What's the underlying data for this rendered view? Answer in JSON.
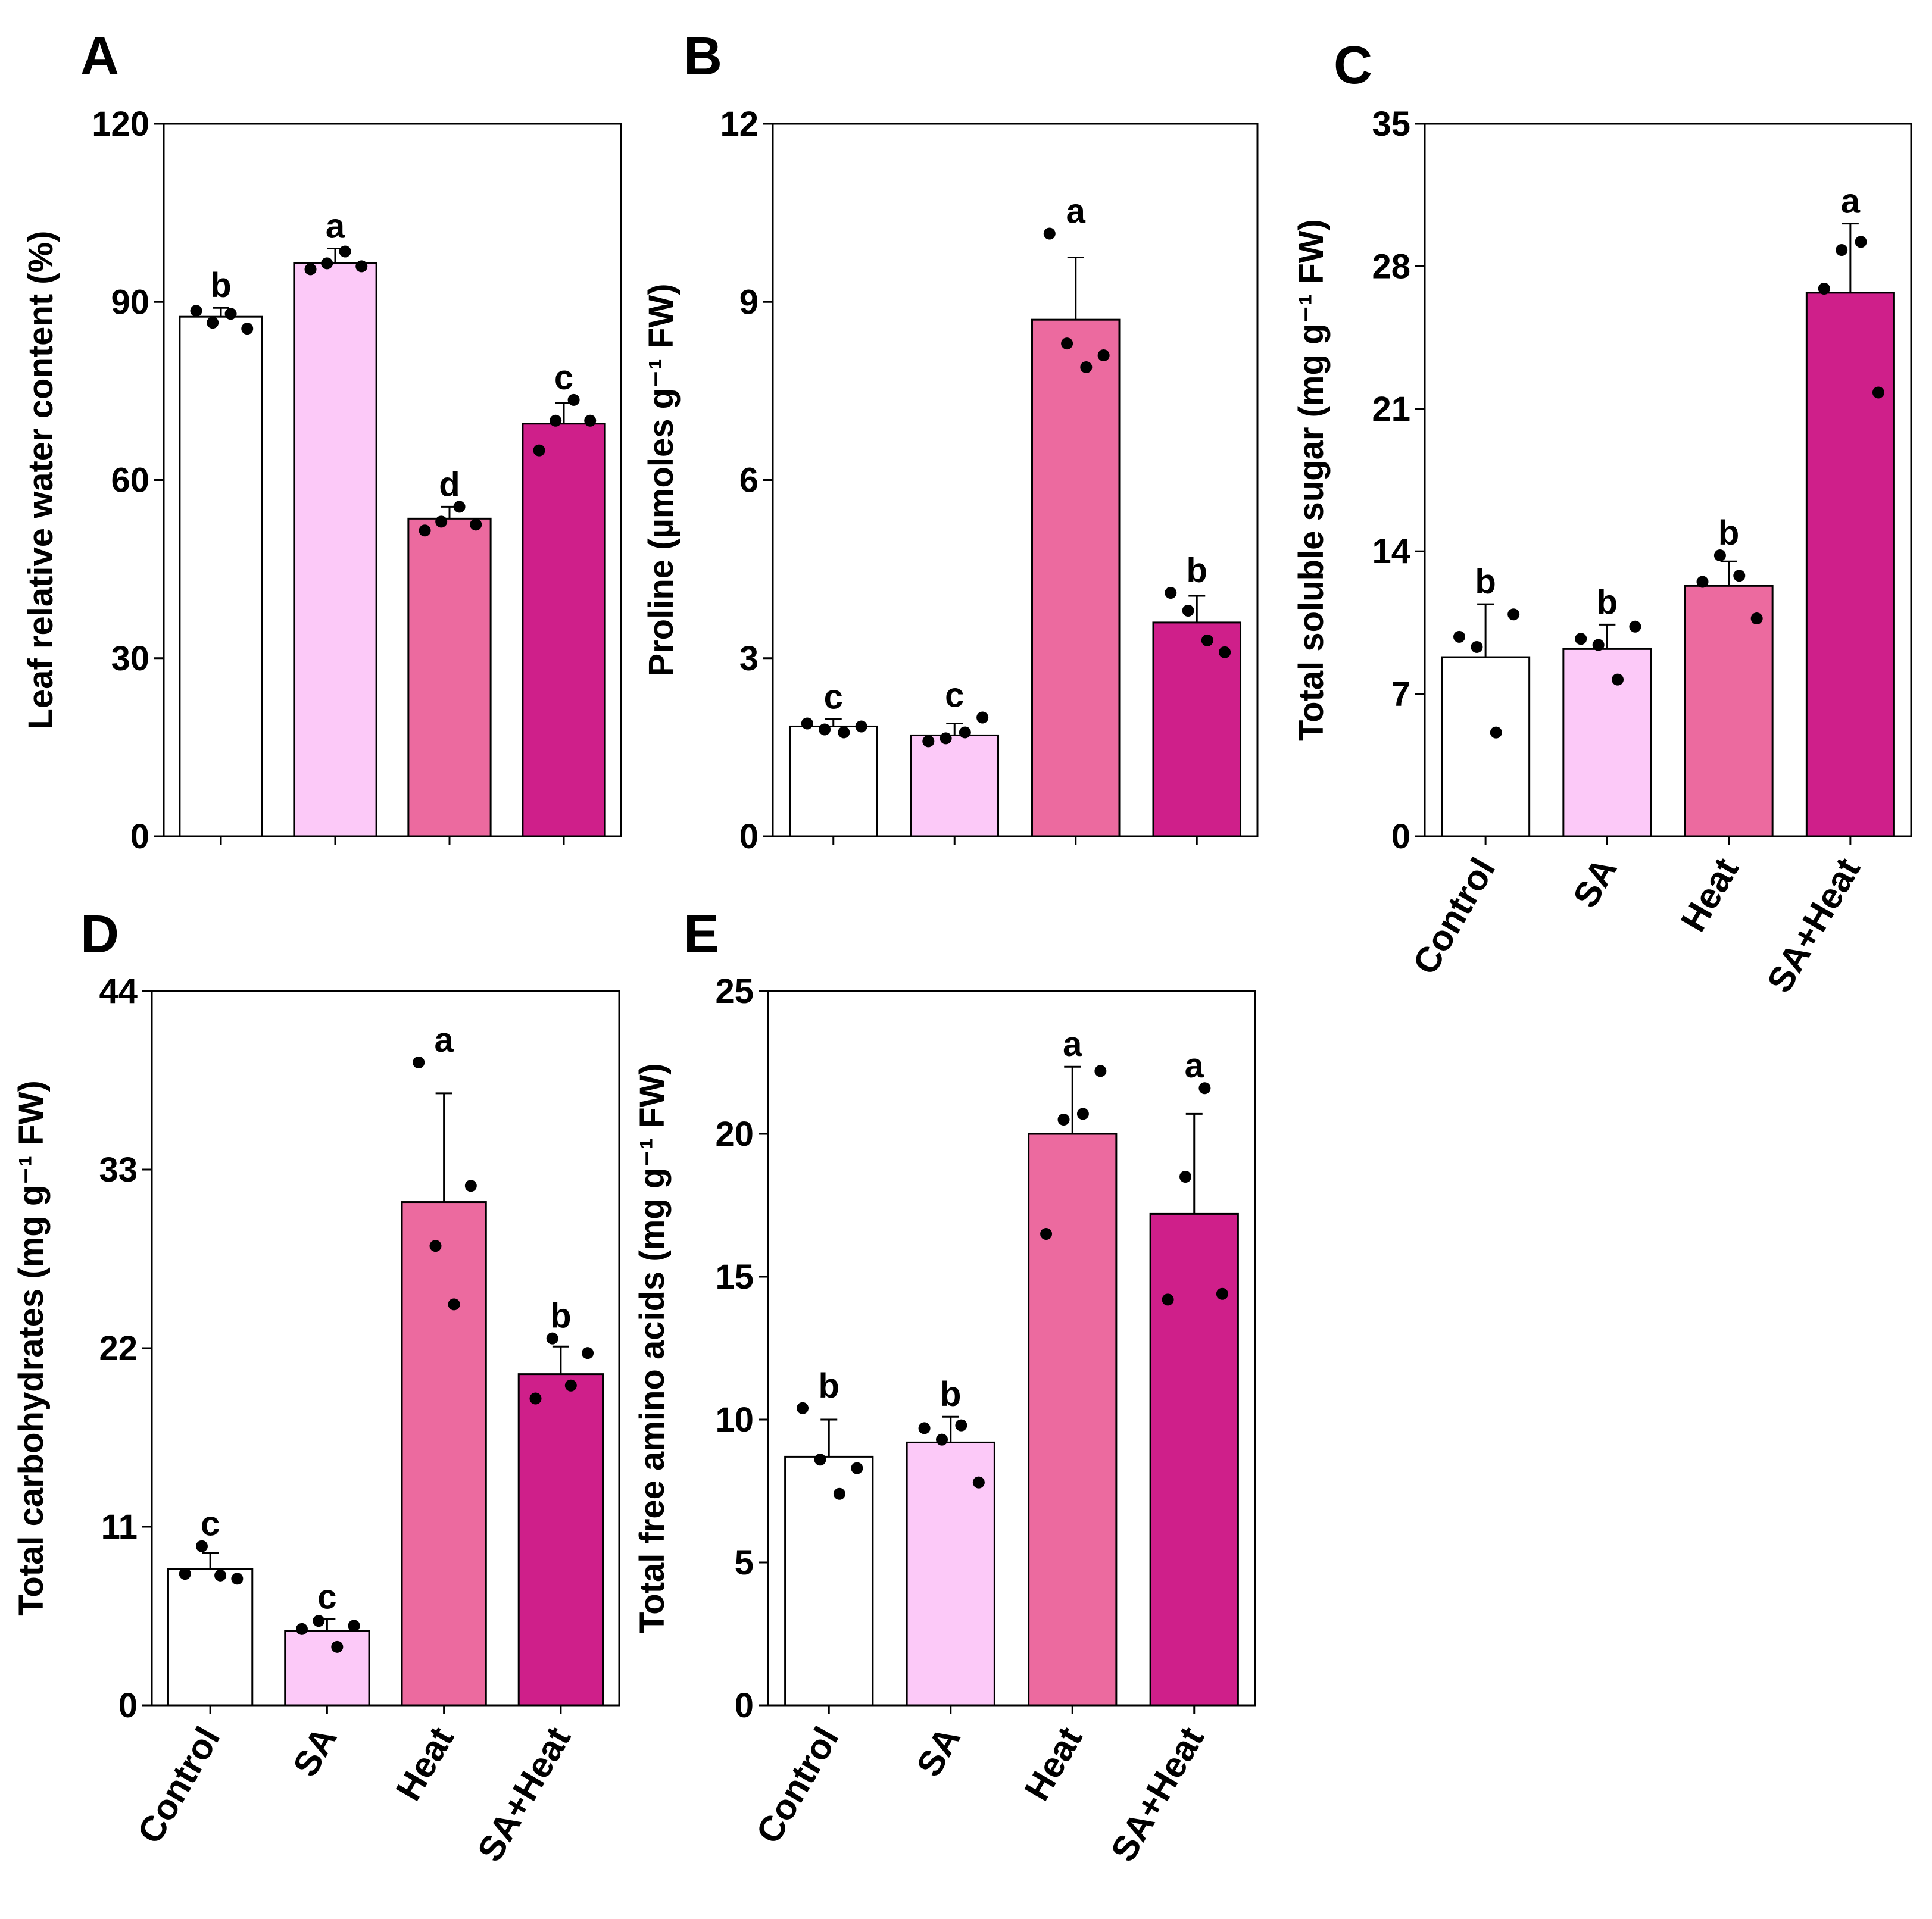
{
  "figure": {
    "categories": [
      "Control",
      "SA",
      "Heat",
      "SA+Heat"
    ],
    "colors": {
      "Control": "#ffffff",
      "SA": "#fcc9f8",
      "Heat": "#ec6a9f",
      "SA+Heat": "#cf1f8a",
      "outline": "#000000",
      "point": "#000000"
    }
  },
  "chart_data": [
    {
      "panel": "A",
      "type": "bar",
      "ylabel": "Leaf relative water content (%)",
      "ylim": [
        0,
        120
      ],
      "yticks": [
        "0",
        "30",
        "60",
        "90",
        "120"
      ],
      "show_xlabels": false,
      "categories": [
        "Control",
        "SA",
        "Heat",
        "SA+Heat"
      ],
      "values": [
        87.5,
        96.5,
        53.5,
        69.5
      ],
      "errors": [
        1.5,
        2.5,
        2.0,
        3.5
      ],
      "letters": [
        "b",
        "a",
        "d",
        "c"
      ],
      "points": [
        [
          88.5,
          86.5,
          88.0,
          85.5
        ],
        [
          95.5,
          96.5,
          98.5,
          96.0
        ],
        [
          51.5,
          53.0,
          55.5,
          52.5
        ],
        [
          65.0,
          70.0,
          73.5,
          70.0
        ]
      ]
    },
    {
      "panel": "B",
      "type": "bar",
      "ylabel": "Proline (µmoles g⁻¹ FW)",
      "ylim": [
        0,
        12
      ],
      "yticks": [
        "0",
        "3",
        "6",
        "9",
        "12"
      ],
      "show_xlabels": false,
      "categories": [
        "Control",
        "SA",
        "Heat",
        "SA+Heat"
      ],
      "values": [
        1.85,
        1.7,
        8.7,
        3.6
      ],
      "errors": [
        0.12,
        0.2,
        1.05,
        0.45
      ],
      "letters": [
        "c",
        "c",
        "a",
        "b"
      ],
      "points": [
        [
          1.9,
          1.8,
          1.75,
          1.85
        ],
        [
          1.6,
          1.65,
          1.75,
          2.0
        ],
        [
          10.15,
          8.3,
          7.9,
          8.1
        ],
        [
          4.1,
          3.8,
          3.3,
          3.1
        ]
      ]
    },
    {
      "panel": "C",
      "type": "bar",
      "ylabel": "Total soluble sugar (mg g⁻¹ FW)",
      "ylim": [
        0,
        35
      ],
      "yticks": [
        "0",
        "7",
        "14",
        "21",
        "28",
        "35"
      ],
      "show_xlabels": true,
      "categories": [
        "Control",
        "SA",
        "Heat",
        "SA+Heat"
      ],
      "values": [
        8.8,
        9.2,
        12.3,
        26.7
      ],
      "errors": [
        2.6,
        1.2,
        1.2,
        3.4
      ],
      "letters": [
        "b",
        "b",
        "b",
        "a"
      ],
      "points": [
        [
          9.8,
          9.3,
          5.1,
          10.9
        ],
        [
          9.7,
          9.4,
          7.7,
          10.3
        ],
        [
          12.5,
          13.8,
          12.8,
          10.7
        ],
        [
          26.9,
          28.8,
          29.2,
          21.8
        ]
      ]
    },
    {
      "panel": "D",
      "type": "bar",
      "ylabel": "Total carbohydrates (mg g⁻¹ FW)",
      "ylim": [
        0,
        44
      ],
      "yticks": [
        "0",
        "11",
        "22",
        "33",
        "44"
      ],
      "show_xlabels": true,
      "categories": [
        "Control",
        "SA",
        "Heat",
        "SA+Heat"
      ],
      "values": [
        8.4,
        4.6,
        31.0,
        20.4
      ],
      "errors": [
        1.0,
        0.7,
        6.7,
        1.7
      ],
      "letters": [
        "c",
        "c",
        "a",
        "b"
      ],
      "points": [
        [
          8.1,
          9.8,
          8.0,
          7.8
        ],
        [
          4.7,
          5.2,
          3.6,
          4.9
        ],
        [
          39.6,
          28.3,
          24.7,
          32.0
        ],
        [
          18.9,
          22.6,
          19.7,
          21.7
        ]
      ]
    },
    {
      "panel": "E",
      "type": "bar",
      "ylabel": "Total free amino acids (mg g⁻¹ FW)",
      "ylim": [
        0,
        25
      ],
      "yticks": [
        "0",
        "5",
        "10",
        "15",
        "20",
        "25"
      ],
      "show_xlabels": true,
      "categories": [
        "Control",
        "SA",
        "Heat",
        "SA+Heat"
      ],
      "values": [
        8.7,
        9.2,
        20.0,
        17.2
      ],
      "errors": [
        1.3,
        0.9,
        2.35,
        3.5
      ],
      "letters": [
        "b",
        "b",
        "a",
        "a"
      ],
      "points": [
        [
          10.4,
          8.6,
          7.4,
          8.3
        ],
        [
          9.7,
          9.3,
          9.8,
          7.8
        ],
        [
          16.5,
          20.5,
          20.7,
          22.2
        ],
        [
          14.2,
          18.5,
          21.6,
          14.4
        ]
      ]
    }
  ]
}
